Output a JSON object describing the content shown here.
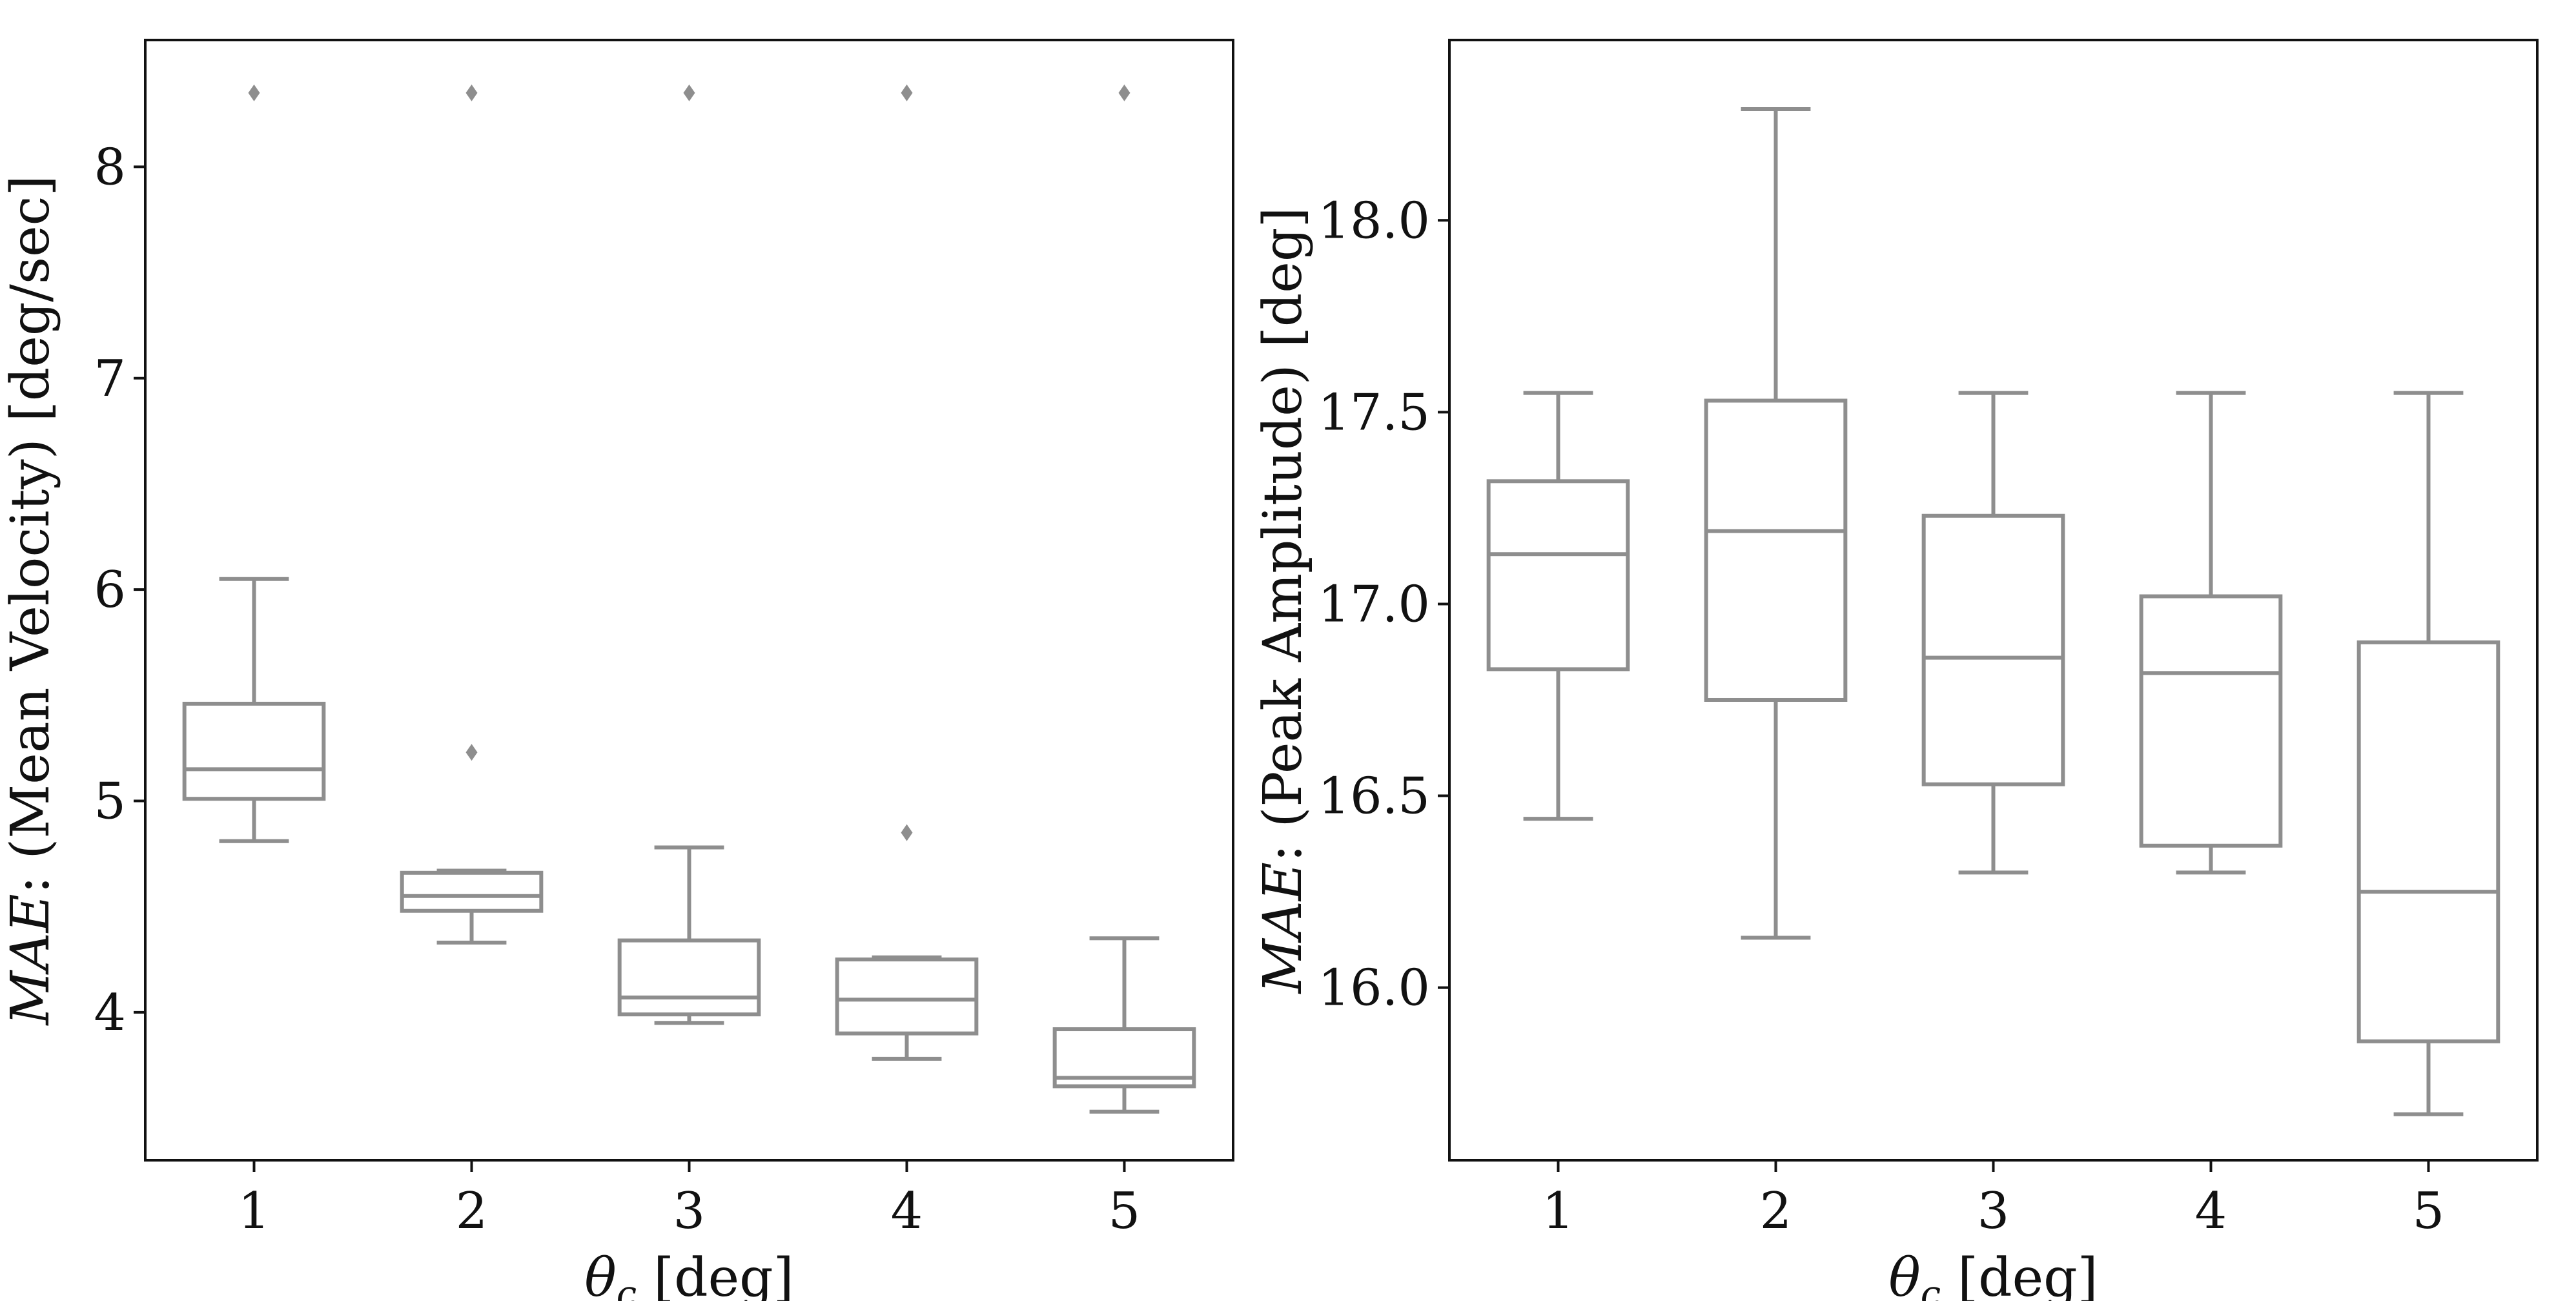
{
  "chart_data": [
    {
      "type": "box",
      "xlabel": "θc [deg]",
      "xlabel_main": "θ",
      "xlabel_sub": "c",
      "xlabel_rest": " [deg]",
      "ylabel": "MAE: (Mean Velocity) [deg/sec]",
      "ylabel_italic": "MAE",
      "ylabel_rest": ": (Mean Velocity) [deg/sec]",
      "categories": [
        "1",
        "2",
        "3",
        "4",
        "5"
      ],
      "ylim": [
        3.3,
        8.6
      ],
      "yticks": [
        4,
        5,
        6,
        7,
        8
      ],
      "ytick_labels": [
        "4",
        "5",
        "6",
        "7",
        "8"
      ],
      "boxes": [
        {
          "category": "1",
          "whislo": 4.81,
          "q1": 5.01,
          "med": 5.15,
          "q3": 5.46,
          "whishi": 6.05,
          "fliers": [
            8.35
          ]
        },
        {
          "category": "2",
          "whislo": 4.33,
          "q1": 4.48,
          "med": 4.55,
          "q3": 4.66,
          "whishi": 4.67,
          "fliers": [
            5.23,
            8.35
          ]
        },
        {
          "category": "3",
          "whislo": 3.95,
          "q1": 3.99,
          "med": 4.07,
          "q3": 4.34,
          "whishi": 4.78,
          "fliers": [
            8.35
          ]
        },
        {
          "category": "4",
          "whislo": 3.78,
          "q1": 3.9,
          "med": 4.06,
          "q3": 4.25,
          "whishi": 4.26,
          "fliers": [
            4.85,
            8.35
          ]
        },
        {
          "category": "5",
          "whislo": 3.53,
          "q1": 3.65,
          "med": 3.69,
          "q3": 3.92,
          "whishi": 4.35,
          "fliers": [
            8.35
          ]
        }
      ],
      "grid": false,
      "color": "#8e8e8e"
    },
    {
      "type": "box",
      "xlabel": "θc [deg]",
      "xlabel_main": "θ",
      "xlabel_sub": "c",
      "xlabel_rest": " [deg]",
      "ylabel": "MAE: (Peak Amplitude) [deg]",
      "ylabel_italic": "MAE",
      "ylabel_rest": ": (Peak Amplitude) [deg]",
      "categories": [
        "1",
        "2",
        "3",
        "4",
        "5"
      ],
      "ylim": [
        15.55,
        18.47
      ],
      "yticks": [
        16.0,
        16.5,
        17.0,
        17.5,
        18.0
      ],
      "ytick_labels": [
        "16.0",
        "16.5",
        "17.0",
        "17.5",
        "18.0"
      ],
      "boxes": [
        {
          "category": "1",
          "whislo": 16.44,
          "q1": 16.83,
          "med": 17.13,
          "q3": 17.32,
          "whishi": 17.55,
          "fliers": []
        },
        {
          "category": "2",
          "whislo": 16.13,
          "q1": 16.75,
          "med": 17.19,
          "q3": 17.53,
          "whishi": 18.29,
          "fliers": []
        },
        {
          "category": "3",
          "whislo": 16.3,
          "q1": 16.53,
          "med": 16.86,
          "q3": 17.23,
          "whishi": 17.55,
          "fliers": []
        },
        {
          "category": "4",
          "whislo": 16.3,
          "q1": 16.37,
          "med": 16.82,
          "q3": 17.02,
          "whishi": 17.55,
          "fliers": []
        },
        {
          "category": "5",
          "whislo": 15.67,
          "q1": 15.86,
          "med": 16.25,
          "q3": 16.9,
          "whishi": 17.55,
          "fliers": []
        }
      ],
      "grid": false,
      "color": "#8e8e8e"
    }
  ]
}
